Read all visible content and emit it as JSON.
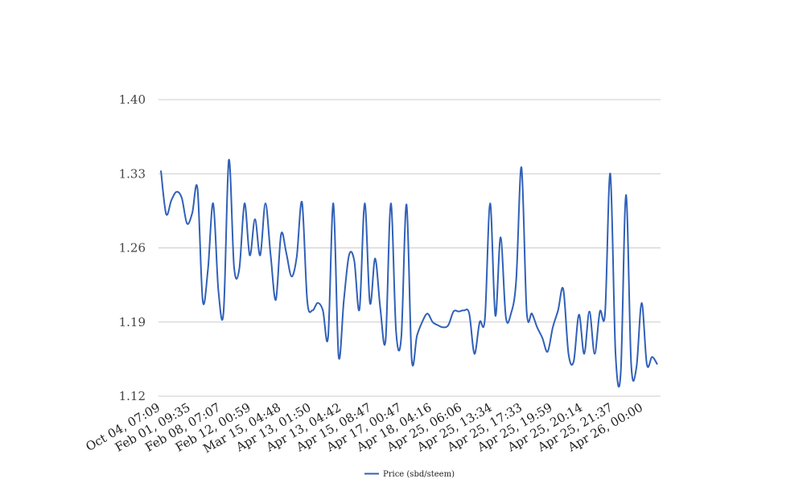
{
  "chart_data": {
    "type": "line",
    "title": "",
    "xlabel": "",
    "ylabel": "",
    "ylim": [
      1.12,
      1.4
    ],
    "y_ticks": [
      "1.12",
      "1.19",
      "1.26",
      "1.33",
      "1.40"
    ],
    "y_tick_values": [
      1.12,
      1.19,
      1.26,
      1.33,
      1.4
    ],
    "x_tick_labels": [
      "Oct 04, 07:09",
      "Feb 01, 09:35",
      "Feb 08, 07:07",
      "Feb 12, 00:59",
      "Mar 15, 04:48",
      "Apr 13, 01:50",
      "Apr 13, 04:42",
      "Apr 15, 08:47",
      "Apr 17, 00:47",
      "Apr 18, 04:16",
      "Apr 25, 06:06",
      "Apr 25, 13:34",
      "Apr 25, 17:33",
      "Apr 25, 19:59",
      "Apr 25, 20:14",
      "Apr 25, 21:37",
      "Apr 26, 00:00"
    ],
    "grid": true,
    "legend_position": "bottom-center",
    "series": [
      {
        "name": "Price (sbd/steem)",
        "color": "#3060b8",
        "values": [
          1.333,
          1.292,
          1.305,
          1.313,
          1.307,
          1.283,
          1.293,
          1.316,
          1.21,
          1.24,
          1.302,
          1.22,
          1.2,
          1.343,
          1.242,
          1.24,
          1.302,
          1.253,
          1.287,
          1.253,
          1.302,
          1.253,
          1.211,
          1.273,
          1.255,
          1.233,
          1.252,
          1.303,
          1.21,
          1.201,
          1.208,
          1.201,
          1.176,
          1.302,
          1.158,
          1.21,
          1.253,
          1.248,
          1.202,
          1.302,
          1.208,
          1.25,
          1.202,
          1.173,
          1.302,
          1.181,
          1.176,
          1.301,
          1.155,
          1.177,
          1.19,
          1.198,
          1.19,
          1.187,
          1.185,
          1.187,
          1.2,
          1.2,
          1.201,
          1.198,
          1.16,
          1.19,
          1.193,
          1.302,
          1.196,
          1.27,
          1.195,
          1.198,
          1.23,
          1.336,
          1.2,
          1.198,
          1.185,
          1.175,
          1.162,
          1.185,
          1.201,
          1.221,
          1.16,
          1.153,
          1.197,
          1.16,
          1.2,
          1.16,
          1.2,
          1.199,
          1.33,
          1.161,
          1.142,
          1.31,
          1.15,
          1.147,
          1.208,
          1.15,
          1.157,
          1.15
        ]
      }
    ]
  }
}
